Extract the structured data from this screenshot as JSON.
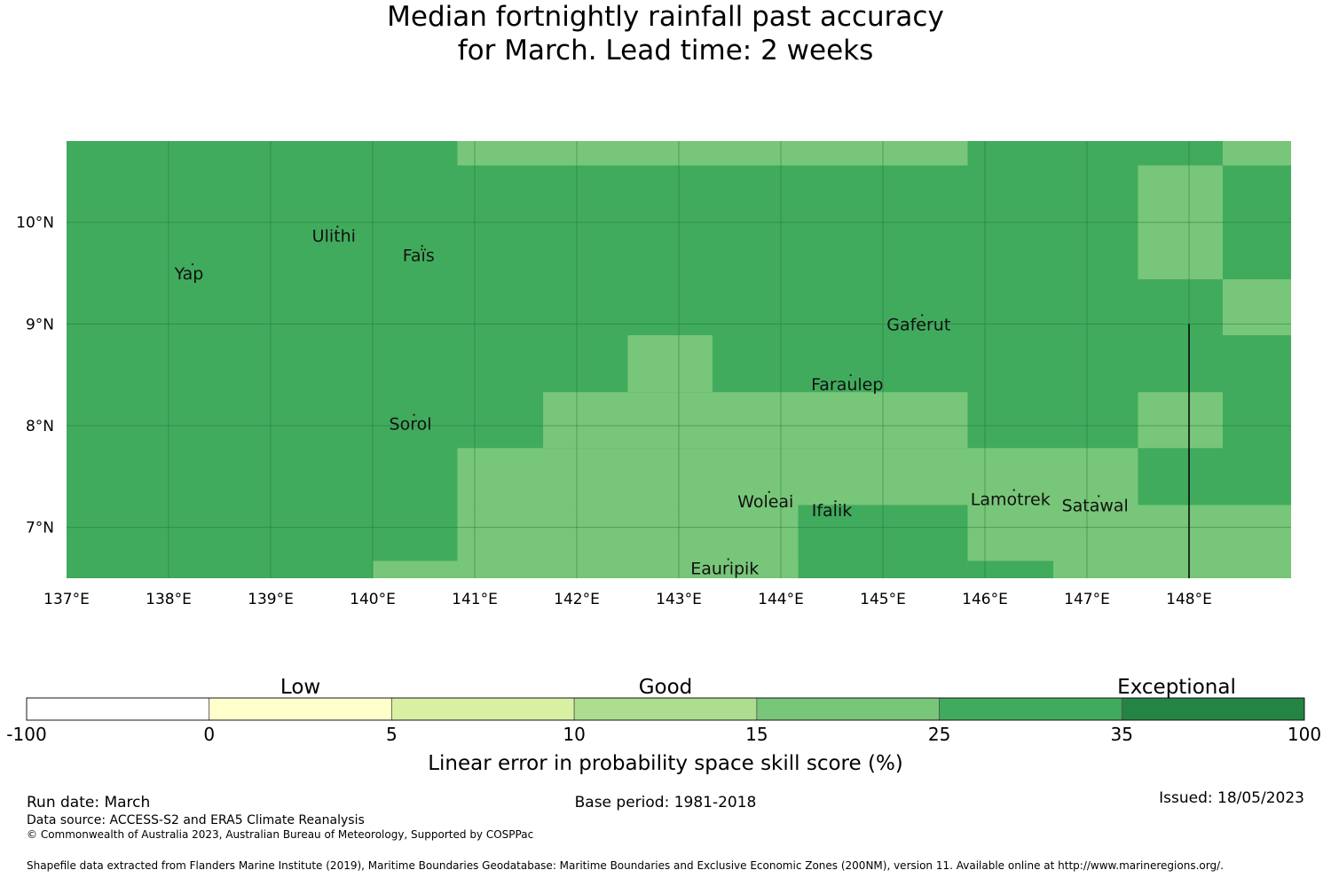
{
  "title": {
    "line1": "Median fortnightly rainfall past accuracy",
    "line2": "for March. Lead time: 2 weeks"
  },
  "map": {
    "lon_range": [
      137,
      149
    ],
    "lat_range": [
      6.5,
      10.8
    ],
    "x_ticks": [
      {
        "lon": 137,
        "label": "137°E"
      },
      {
        "lon": 138,
        "label": "138°E"
      },
      {
        "lon": 139,
        "label": "139°E"
      },
      {
        "lon": 140,
        "label": "140°E"
      },
      {
        "lon": 141,
        "label": "141°E"
      },
      {
        "lon": 142,
        "label": "142°E"
      },
      {
        "lon": 143,
        "label": "143°E"
      },
      {
        "lon": 144,
        "label": "144°E"
      },
      {
        "lon": 145,
        "label": "145°E"
      },
      {
        "lon": 146,
        "label": "146°E"
      },
      {
        "lon": 147,
        "label": "147°E"
      },
      {
        "lon": 148,
        "label": "148°E"
      }
    ],
    "y_ticks": [
      {
        "lat": 10,
        "label": "10°N"
      },
      {
        "lat": 9,
        "label": "9°N"
      },
      {
        "lat": 8,
        "label": "8°N"
      },
      {
        "lat": 7,
        "label": "7°N"
      }
    ],
    "background_category": 5,
    "skill_cells": [
      {
        "lon": [
          140.83,
          145.83
        ],
        "lat": [
          10.56,
          10.8
        ],
        "category": 4
      },
      {
        "lon": [
          147.5,
          148.33
        ],
        "lat": [
          9.44,
          10.56
        ],
        "category": 4
      },
      {
        "lon": [
          148.33,
          149
        ],
        "lat": [
          10.56,
          10.8
        ],
        "category": 4
      },
      {
        "lon": [
          148.33,
          149
        ],
        "lat": [
          8.89,
          9.44
        ],
        "category": 4
      },
      {
        "lon": [
          142.5,
          143.33
        ],
        "lat": [
          8.33,
          8.89
        ],
        "category": 4
      },
      {
        "lon": [
          141.67,
          145.83
        ],
        "lat": [
          7.78,
          8.33
        ],
        "category": 4
      },
      {
        "lon": [
          147.5,
          148.33
        ],
        "lat": [
          7.78,
          8.33
        ],
        "category": 4
      },
      {
        "lon": [
          140.83,
          147.5
        ],
        "lat": [
          7.22,
          7.78
        ],
        "category": 4
      },
      {
        "lon": [
          140.83,
          144.17
        ],
        "lat": [
          6.5,
          7.22
        ],
        "category": 4
      },
      {
        "lon": [
          145.83,
          149
        ],
        "lat": [
          6.5,
          7.22
        ],
        "category": 4
      },
      {
        "lon": [
          140,
          140.83
        ],
        "lat": [
          6.5,
          6.67
        ],
        "category": 4
      },
      {
        "lon": [
          144.17,
          145.83
        ],
        "lat": [
          6.67,
          7.22
        ],
        "category": 5
      },
      {
        "lon": [
          145.83,
          146.67
        ],
        "lat": [
          6.5,
          6.67
        ],
        "category": 5
      }
    ],
    "places": [
      {
        "name": "Yap",
        "lon": 138.2,
        "lat": 9.5
      },
      {
        "name": "Ulithi",
        "lon": 139.62,
        "lat": 9.87
      },
      {
        "name": "Faïs",
        "lon": 140.45,
        "lat": 9.68
      },
      {
        "name": "Gaferut",
        "lon": 145.35,
        "lat": 9.0
      },
      {
        "name": "Faraulep",
        "lon": 144.65,
        "lat": 8.41
      },
      {
        "name": "Sorol",
        "lon": 140.37,
        "lat": 8.02
      },
      {
        "name": "Woleai",
        "lon": 143.85,
        "lat": 7.26
      },
      {
        "name": "Ifalik",
        "lon": 144.5,
        "lat": 7.17
      },
      {
        "name": "Lamotrek",
        "lon": 146.25,
        "lat": 7.28
      },
      {
        "name": "Satawal",
        "lon": 147.08,
        "lat": 7.22
      },
      {
        "name": "Eauripik",
        "lon": 143.45,
        "lat": 6.6
      }
    ],
    "boundary_line": {
      "lon": 148,
      "lat": [
        6.5,
        9.0
      ]
    }
  },
  "colorbar": {
    "bins": [
      {
        "color": "#ffffff"
      },
      {
        "color": "#ffffcc"
      },
      {
        "color": "#d9f0a3"
      },
      {
        "color": "#addd8e"
      },
      {
        "color": "#78c679"
      },
      {
        "color": "#41ab5d"
      },
      {
        "color": "#238443"
      }
    ],
    "tick_labels": [
      "-100",
      "0",
      "5",
      "10",
      "15",
      "25",
      "35",
      "100"
    ],
    "categories": [
      "Low",
      "Good",
      "Exceptional"
    ],
    "axis_label": "Linear error in probability space skill score (%)"
  },
  "footer": {
    "run_date": "Run date: March",
    "base_period": "Base period: 1981-2018",
    "issued": "Issued: 18/05/2023",
    "data_source": "Data source: ACCESS-S2 and ERA5 Climate Reanalysis",
    "copyright": "© Commonwealth of Australia 2023, Australian Bureau of Meteorology, Supported by COSPPac",
    "shapefile": "Shapefile data extracted from Flanders Marine Institute (2019), Maritime Boundaries Geodatabase: Maritime Boundaries and Exclusive Economic Zones (200NM), version 11. Available online at http://www.marineregions.org/."
  }
}
